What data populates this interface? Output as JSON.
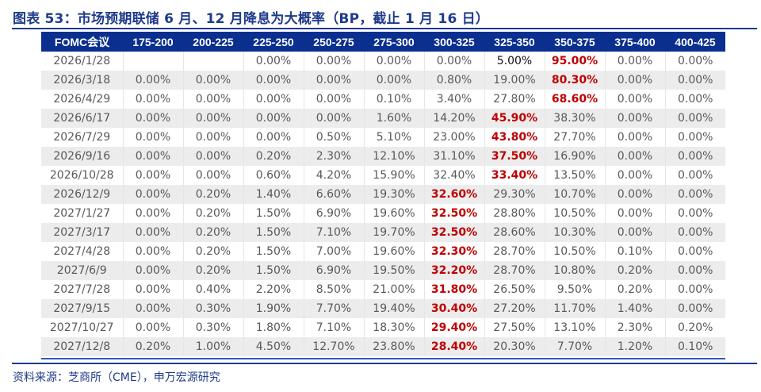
{
  "title": "图表 53：市场预期联储 6 月、12 月降息为大概率（BP，截止 1 月 16 日）",
  "source": "资料来源：芝商所（CME），申万宏源研究",
  "colors": {
    "title_blue": "#1f3b8a",
    "header_bg": "#0a2f8f",
    "header_text": "#ffffff",
    "highlight_red": "#c00000",
    "cell_text": "#595959",
    "stripe": "#ececec"
  },
  "table": {
    "headers": [
      "FOMC会议",
      "175-200",
      "200-225",
      "225-250",
      "250-275",
      "275-300",
      "300-325",
      "325-350",
      "350-375",
      "375-400",
      "400-425"
    ],
    "rows": [
      {
        "date": "2026/1/28",
        "cells": [
          "",
          "",
          "0.00%",
          "0.00%",
          "0.00%",
          "0.00%",
          "5.00%",
          "95.00%",
          "0.00%",
          "0.00%"
        ],
        "highlight": 7
      },
      {
        "date": "2026/3/18",
        "cells": [
          "0.00%",
          "0.00%",
          "0.00%",
          "0.00%",
          "0.00%",
          "0.80%",
          "19.00%",
          "80.30%",
          "0.00%",
          "0.00%"
        ],
        "highlight": 7
      },
      {
        "date": "2026/4/29",
        "cells": [
          "0.00%",
          "0.00%",
          "0.00%",
          "0.00%",
          "0.10%",
          "3.40%",
          "27.80%",
          "68.60%",
          "0.00%",
          "0.00%"
        ],
        "highlight": 7
      },
      {
        "date": "2026/6/17",
        "cells": [
          "0.00%",
          "0.00%",
          "0.00%",
          "0.00%",
          "1.60%",
          "14.20%",
          "45.90%",
          "38.30%",
          "0.00%",
          "0.00%"
        ],
        "highlight": 6
      },
      {
        "date": "2026/7/29",
        "cells": [
          "0.00%",
          "0.00%",
          "0.00%",
          "0.50%",
          "5.10%",
          "23.00%",
          "43.80%",
          "27.70%",
          "0.00%",
          "0.00%"
        ],
        "highlight": 6
      },
      {
        "date": "2026/9/16",
        "cells": [
          "0.00%",
          "0.00%",
          "0.20%",
          "2.30%",
          "12.10%",
          "31.10%",
          "37.50%",
          "16.90%",
          "0.00%",
          "0.00%"
        ],
        "highlight": 6
      },
      {
        "date": "2026/10/28",
        "cells": [
          "0.00%",
          "0.00%",
          "0.60%",
          "4.20%",
          "15.90%",
          "32.40%",
          "33.40%",
          "13.50%",
          "0.00%",
          "0.00%"
        ],
        "highlight": 6
      },
      {
        "date": "2026/12/9",
        "cells": [
          "0.00%",
          "0.20%",
          "1.40%",
          "6.60%",
          "19.30%",
          "32.60%",
          "29.30%",
          "10.70%",
          "0.00%",
          "0.00%"
        ],
        "highlight": 5
      },
      {
        "date": "2027/1/27",
        "cells": [
          "0.00%",
          "0.20%",
          "1.50%",
          "6.90%",
          "19.60%",
          "32.50%",
          "28.80%",
          "10.50%",
          "0.00%",
          "0.00%"
        ],
        "highlight": 5
      },
      {
        "date": "2027/3/17",
        "cells": [
          "0.00%",
          "0.20%",
          "1.50%",
          "7.10%",
          "19.70%",
          "32.50%",
          "28.60%",
          "10.30%",
          "0.00%",
          "0.00%"
        ],
        "highlight": 5
      },
      {
        "date": "2027/4/28",
        "cells": [
          "0.00%",
          "0.20%",
          "1.50%",
          "7.00%",
          "19.60%",
          "32.30%",
          "28.70%",
          "10.50%",
          "0.10%",
          "0.00%"
        ],
        "highlight": 5
      },
      {
        "date": "2027/6/9",
        "cells": [
          "0.00%",
          "0.20%",
          "1.50%",
          "6.90%",
          "19.50%",
          "32.20%",
          "28.70%",
          "10.80%",
          "0.20%",
          "0.00%"
        ],
        "highlight": 5
      },
      {
        "date": "2027/7/28",
        "cells": [
          "0.00%",
          "0.40%",
          "2.20%",
          "8.50%",
          "21.00%",
          "31.80%",
          "26.50%",
          "9.50%",
          "0.20%",
          "0.00%"
        ],
        "highlight": 5
      },
      {
        "date": "2027/9/15",
        "cells": [
          "0.00%",
          "0.30%",
          "1.90%",
          "7.70%",
          "19.40%",
          "30.40%",
          "27.20%",
          "11.70%",
          "1.40%",
          "0.00%"
        ],
        "highlight": 5
      },
      {
        "date": "2027/10/27",
        "cells": [
          "0.00%",
          "0.30%",
          "1.80%",
          "7.10%",
          "18.30%",
          "29.40%",
          "27.50%",
          "13.10%",
          "2.30%",
          "0.20%"
        ],
        "highlight": 5
      },
      {
        "date": "2027/12/8",
        "cells": [
          "0.20%",
          "1.00%",
          "4.50%",
          "12.70%",
          "23.80%",
          "28.40%",
          "20.30%",
          "7.70%",
          "1.20%",
          "0.10%"
        ],
        "highlight": 5
      }
    ]
  }
}
